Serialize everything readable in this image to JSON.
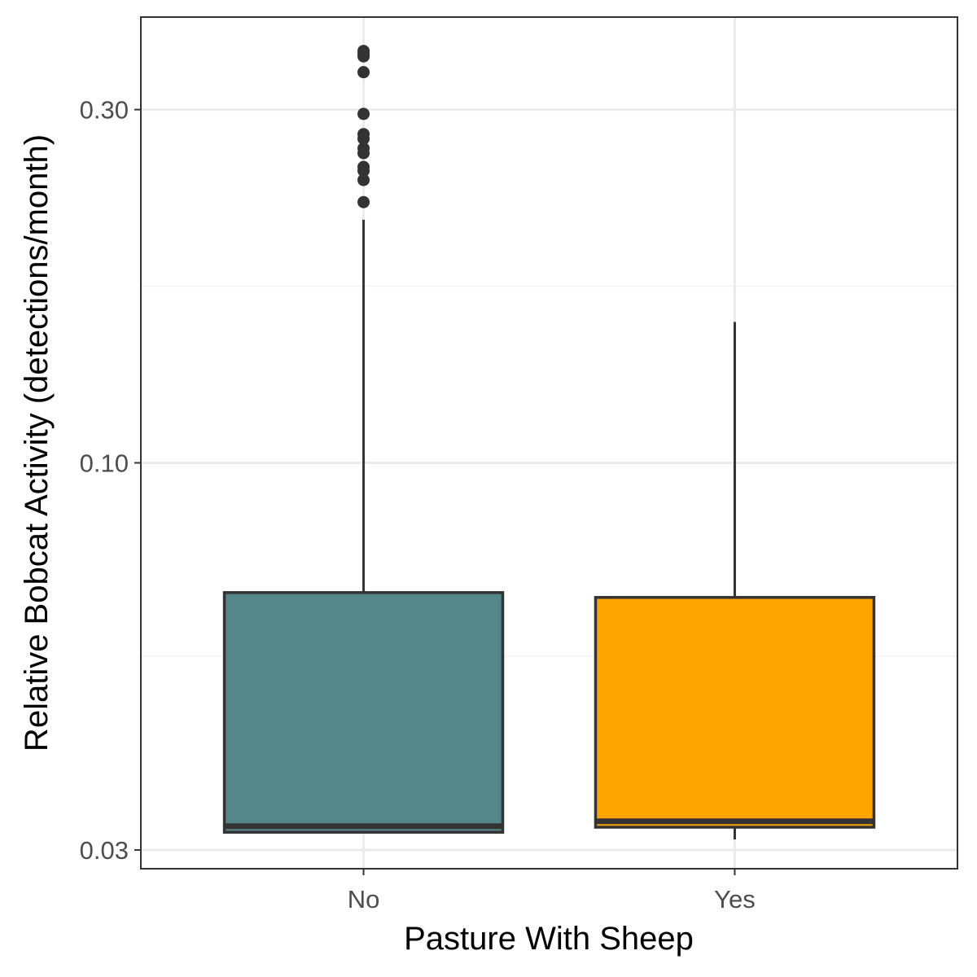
{
  "chart_data": {
    "type": "boxplot",
    "xlabel": "Pasture With Sheep",
    "ylabel": "Relative Bobcat Activity (detections/month)",
    "y_scale": "log10",
    "ylim": [
      0.0283,
      0.4
    ],
    "y_ticks": [
      {
        "value": 0.03,
        "label": "0.03"
      },
      {
        "value": 0.1,
        "label": "0.10"
      },
      {
        "value": 0.3,
        "label": "0.30"
      }
    ],
    "grid": true,
    "legend": "none",
    "categories": [
      "No",
      "Yes"
    ],
    "boxes": [
      {
        "category": "No",
        "fill": "#55868a",
        "whisker_low": 0.0317,
        "q1": 0.0317,
        "median": 0.0323,
        "q3": 0.0668,
        "whisker_high": 0.213,
        "outliers": [
          0.36,
          0.357,
          0.354,
          0.337,
          0.296,
          0.278,
          0.274,
          0.266,
          0.262,
          0.251,
          0.248,
          0.241,
          0.225
        ]
      },
      {
        "category": "Yes",
        "fill": "#ffa500",
        "whisker_low": 0.031,
        "q1": 0.0322,
        "median": 0.0328,
        "q3": 0.0658,
        "whisker_high": 0.155,
        "outliers": []
      }
    ],
    "colors": {
      "panel_border": "#333333",
      "grid_major": "#ebebeb",
      "grid_minor": "#f2f2f2",
      "box_line": "#333333",
      "tick_text": "#4d4d4d",
      "title_text": "#000000"
    }
  }
}
